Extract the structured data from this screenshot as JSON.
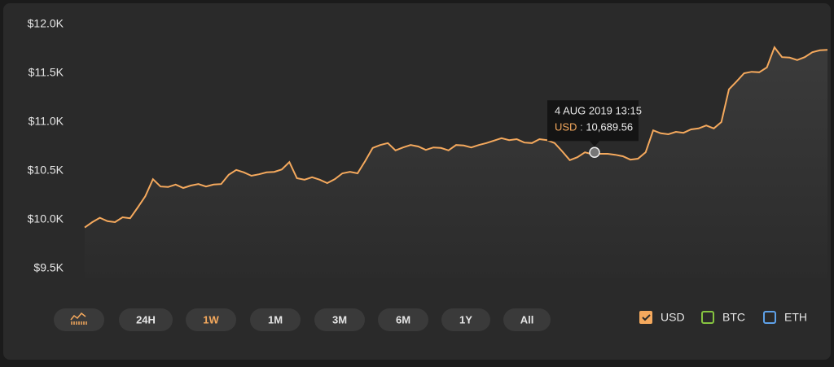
{
  "chart_data": {
    "type": "line",
    "series": [
      {
        "name": "USD",
        "color": "#f5a95d",
        "visible": true,
        "values": [
          9920,
          9975,
          10020,
          9985,
          9975,
          10025,
          10015,
          10125,
          10240,
          10415,
          10340,
          10335,
          10360,
          10325,
          10350,
          10365,
          10340,
          10360,
          10365,
          10460,
          10510,
          10485,
          10450,
          10465,
          10485,
          10490,
          10515,
          10590,
          10425,
          10410,
          10435,
          10410,
          10375,
          10415,
          10475,
          10490,
          10475,
          10600,
          10735,
          10765,
          10785,
          10710,
          10740,
          10765,
          10750,
          10715,
          10740,
          10735,
          10710,
          10765,
          10760,
          10740,
          10765,
          10785,
          10810,
          10835,
          10815,
          10825,
          10790,
          10785,
          10825,
          10815,
          10785,
          10700,
          10610,
          10640,
          10690,
          10670,
          10675,
          10675,
          10665,
          10650,
          10615,
          10625,
          10690,
          10915,
          10885,
          10875,
          10900,
          10890,
          10925,
          10935,
          10965,
          10935,
          11000,
          11335,
          11415,
          11500,
          11515,
          11510,
          11560,
          11765,
          11665,
          11660,
          11635,
          11665,
          11715,
          11735,
          11740
        ]
      },
      {
        "name": "BTC",
        "color": "#86c440",
        "visible": false
      },
      {
        "name": "ETH",
        "color": "#5ea1e8",
        "visible": false
      }
    ],
    "ylim": [
      9400,
      12000
    ],
    "yticks": [
      {
        "value": 9500,
        "label": "$9.5K"
      },
      {
        "value": 10000,
        "label": "$10.0K"
      },
      {
        "value": 10500,
        "label": "$10.5K"
      },
      {
        "value": 11000,
        "label": "$11.0K"
      },
      {
        "value": 11500,
        "label": "$11.5K"
      },
      {
        "value": 12000,
        "label": "$12.0K"
      }
    ],
    "tooltip": {
      "date": "4 AUG 2019 13:15",
      "series": "USD",
      "separator": ":",
      "value": 10689.56,
      "value_label": "10,689.56"
    },
    "range_buttons": [
      "24H",
      "1W",
      "1M",
      "3M",
      "6M",
      "1Y",
      "All"
    ],
    "active_range_index": 1
  }
}
